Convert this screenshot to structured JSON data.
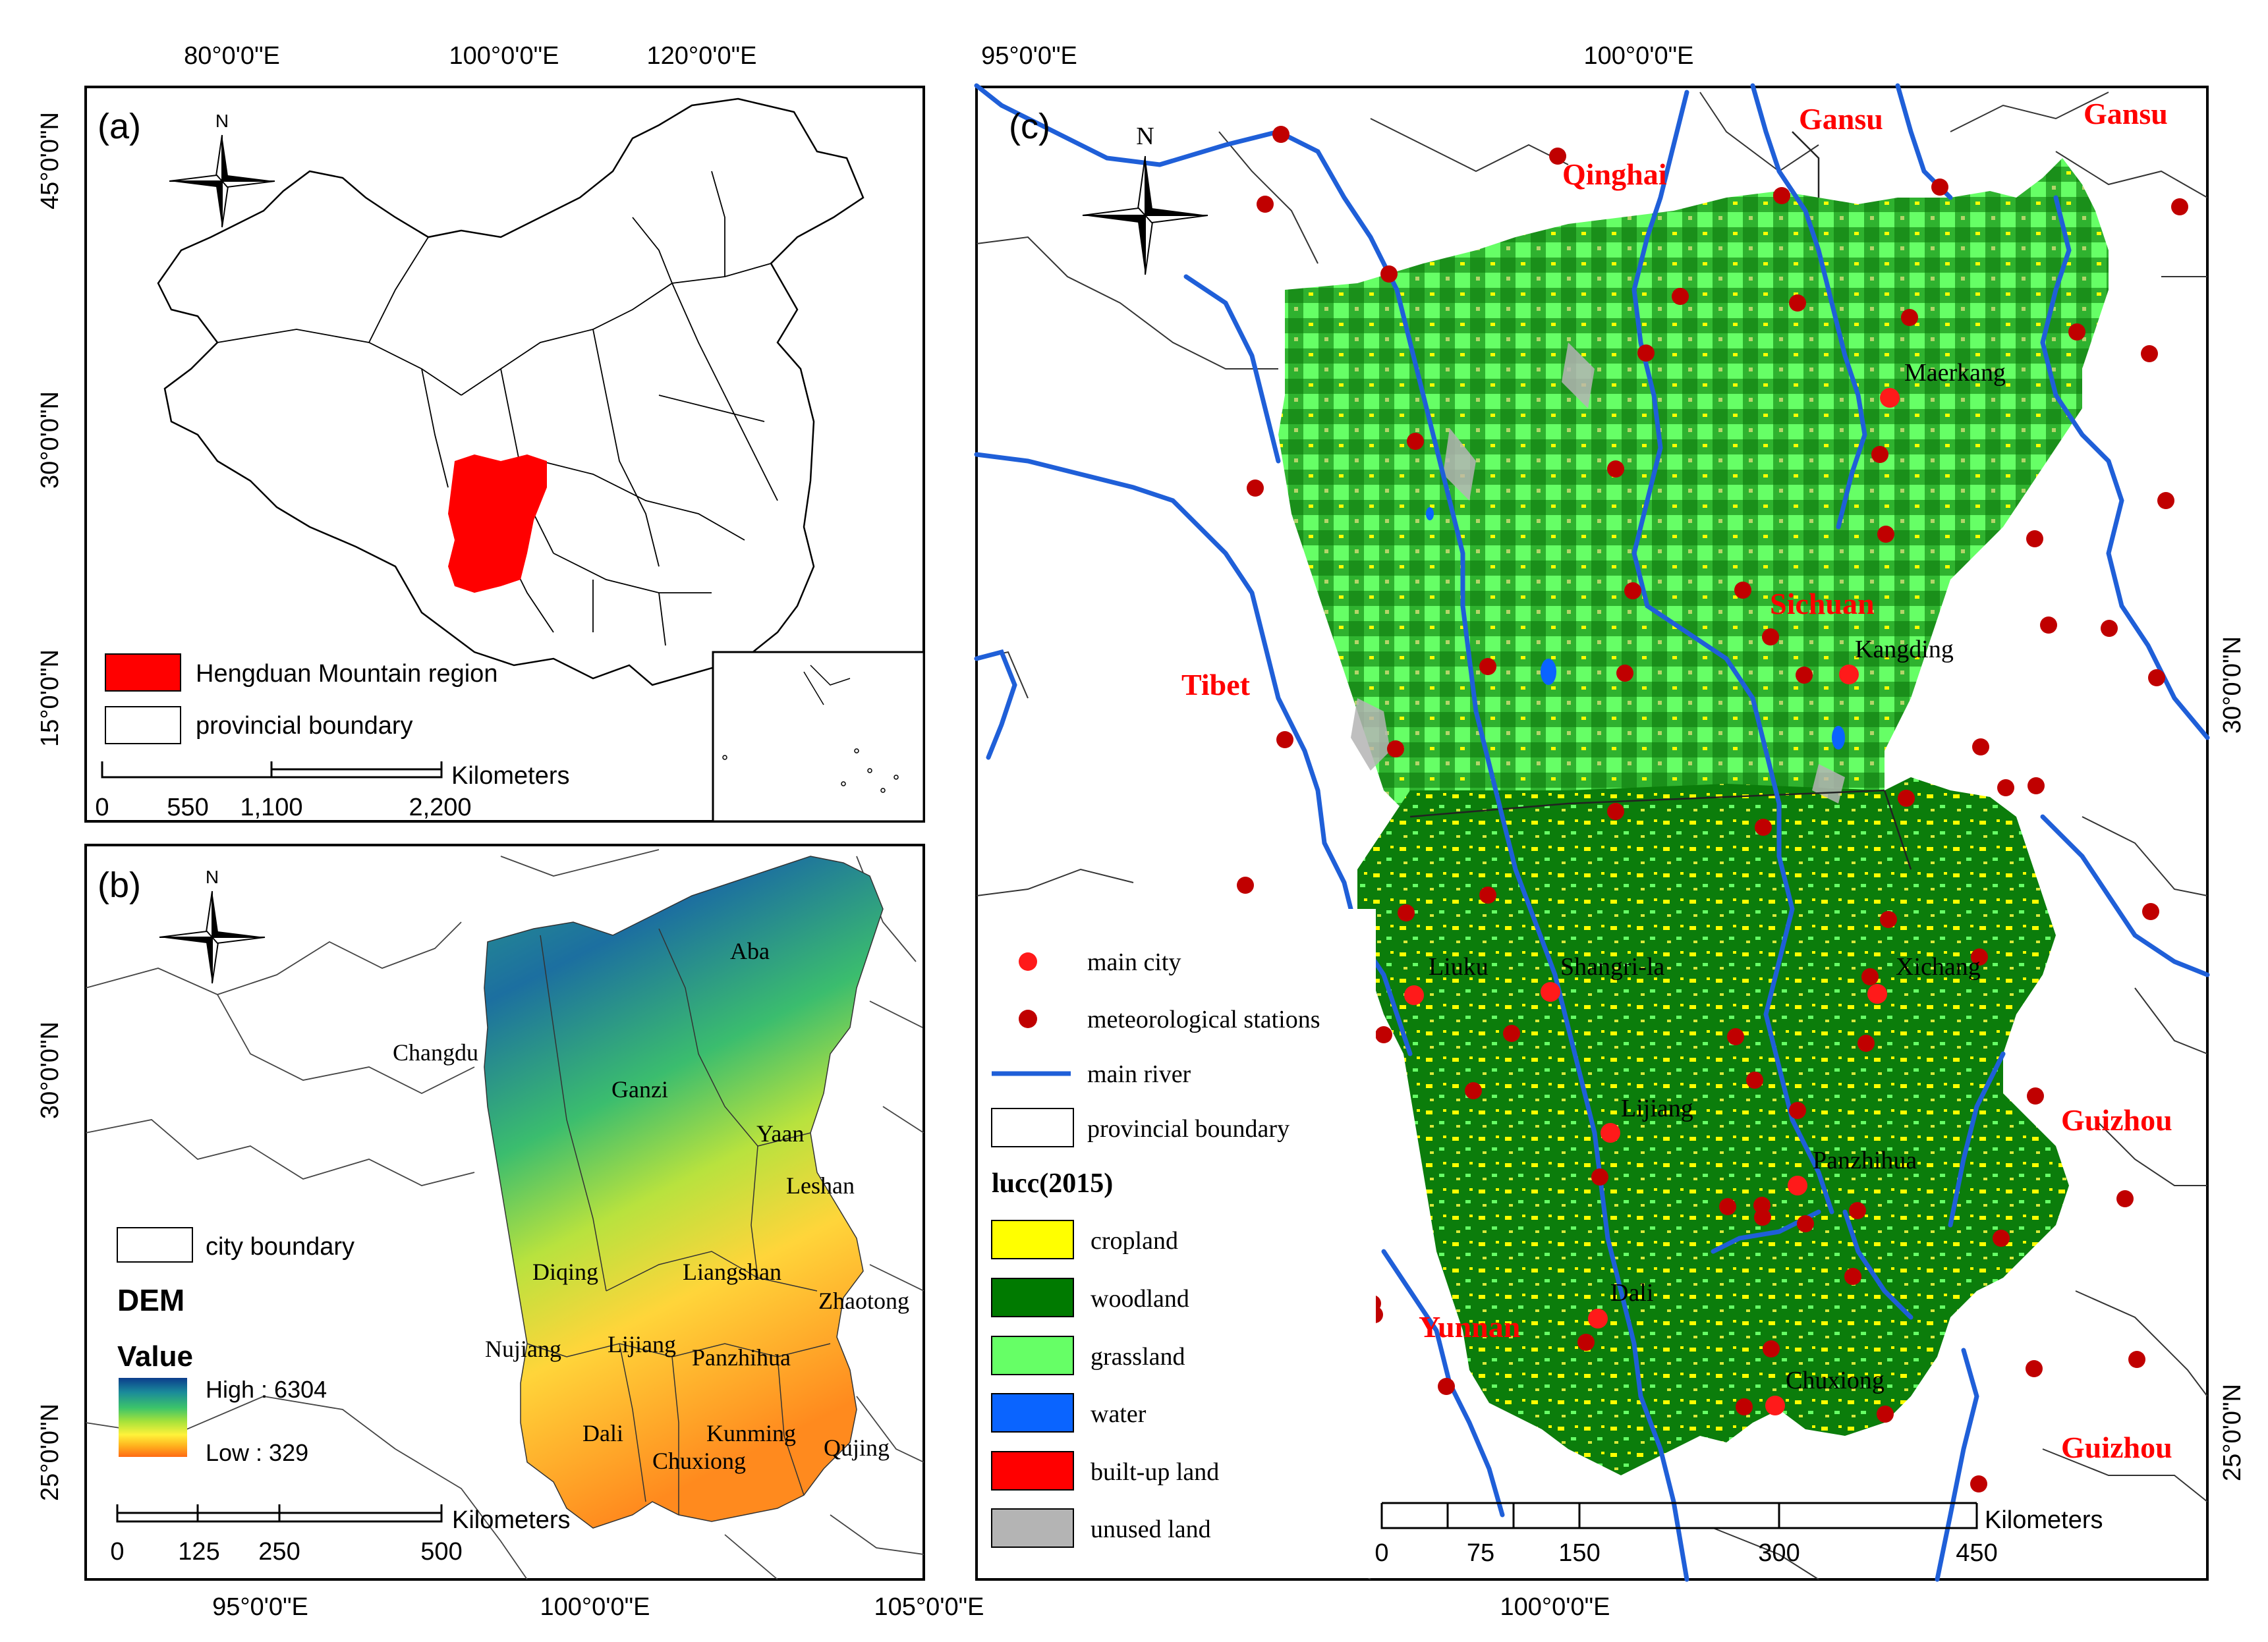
{
  "panel_a": {
    "label": "(a)",
    "north": "N",
    "top_ticks": [
      "80°0'0\"E",
      "100°0'0\"E",
      "120°0'0\"E"
    ],
    "left_ticks": [
      "45°0'0\"N",
      "30°0'0\"N",
      "15°0'0\"N"
    ],
    "legend": [
      {
        "label": "Hengduan Mountain region",
        "color": "#ff0000"
      },
      {
        "label": "provincial boundary",
        "color": "#ffffff"
      }
    ],
    "scale": {
      "unit": "Kilometers",
      "ticks": [
        "0",
        "550",
        "1,100",
        "2,200"
      ]
    }
  },
  "panel_b": {
    "label": "(b)",
    "north": "N",
    "bottom_ticks": [
      "95°0'0\"E",
      "100°0'0\"E",
      "105°0'0\"E"
    ],
    "left_ticks": [
      "30°0'0\"N",
      "25°0'0\"N"
    ],
    "cities": [
      "Aba",
      "Changdu",
      "Ganzi",
      "Yaan",
      "Leshan",
      "Diqing",
      "Liangshan",
      "Zhaotong",
      "Nujiang",
      "Lijiang",
      "Panzhihua",
      "Dali",
      "Kunming",
      "Chuxiong",
      "Qujing"
    ],
    "legend": {
      "boundary_label": "city boundary",
      "title": "DEM",
      "subtitle": "Value",
      "high": "High : 6304",
      "low": "Low : 329",
      "colors": [
        "#0b3d8c",
        "#1a8a9a",
        "#3cc46a",
        "#a6e23a",
        "#fff23a",
        "#ffb21e",
        "#ff6a14"
      ]
    },
    "scale": {
      "unit": "Kilometers",
      "ticks": [
        "0",
        "125",
        "250",
        "500"
      ]
    }
  },
  "panel_c": {
    "label": "(c)",
    "north": "N",
    "top_ticks": [
      "95°0'0\"E",
      "100°0'0\"E"
    ],
    "bottom_ticks": [
      "100°0'0\"E"
    ],
    "right_ticks": [
      "30°0'0\"N",
      "25°0'0\"N"
    ],
    "provinces": [
      "Gansu",
      "Gansu",
      "Qinghai",
      "Sichuan",
      "Tibet",
      "Guizhou",
      "Yunnan",
      "Guizhou"
    ],
    "cities": [
      "Maerkang",
      "Kangding",
      "Liuku",
      "Shangri-la",
      "Xichang",
      "Lijiang",
      "Panzhihua",
      "Dali",
      "Chuxiong"
    ],
    "legend": {
      "main_city": "main city",
      "stations": "meteorological stations",
      "river": "main river",
      "boundary": "provincial boundary",
      "lucc_title": "lucc(2015)",
      "classes": [
        {
          "label": "cropland",
          "color": "#ffff00"
        },
        {
          "label": "woodland",
          "color": "#007a00"
        },
        {
          "label": "grassland",
          "color": "#66ff66"
        },
        {
          "label": "water",
          "color": "#0a64ff"
        },
        {
          "label": "built-up land",
          "color": "#ff0000"
        },
        {
          "label": "unused land",
          "color": "#b4b4b4"
        }
      ],
      "city_color": "#ff1a1a",
      "station_color": "#c00000",
      "river_color": "#1f5fd8"
    },
    "scale": {
      "unit": "Kilometers",
      "ticks": [
        "0",
        "75",
        "150",
        "300",
        "450"
      ]
    }
  }
}
